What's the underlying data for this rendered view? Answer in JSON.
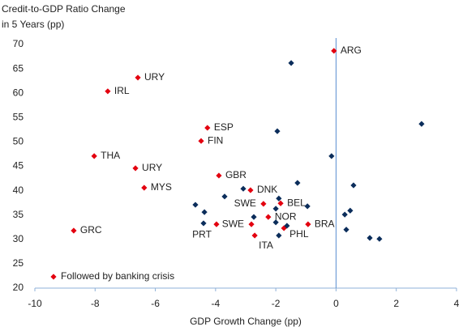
{
  "chart_data": {
    "type": "scatter",
    "y_label": [
      "Credit-to-GDP Ratio Change",
      "in 5 Years (pp)"
    ],
    "x_label": "GDP Growth Change (pp)",
    "xlim": [
      -10,
      4
    ],
    "xticks": [
      -10,
      -8,
      -6,
      -4,
      -2,
      0,
      2,
      4
    ],
    "ylim": [
      20,
      70
    ],
    "yticks": [
      20,
      25,
      30,
      35,
      40,
      45,
      50,
      55,
      60,
      65,
      70
    ],
    "legend": "lower left",
    "series": [
      {
        "name": "Followed by banking crisis",
        "color": "#e3000f",
        "labels": [
          "ARG",
          "URY",
          "IRL",
          "ESP",
          "FIN",
          "THA",
          "URY",
          "MYS",
          "GBR",
          "DNK",
          "SWE",
          "BEL",
          "NOR",
          "SWE",
          "PRT",
          "PHL",
          "BRA",
          "ITA",
          "GRC"
        ],
        "x": [
          -0.07,
          -6.58,
          -7.58,
          -4.27,
          -4.48,
          -8.03,
          -6.66,
          -6.37,
          -3.89,
          -2.84,
          -2.41,
          -1.84,
          -2.25,
          -2.81,
          -3.97,
          -1.73,
          -0.93,
          -2.7,
          -8.71
        ],
        "values": [
          68.7,
          63.2,
          60.4,
          52.9,
          50.2,
          47.1,
          44.6,
          40.6,
          43.1,
          40.1,
          37.3,
          37.4,
          34.6,
          33.1,
          33.1,
          32.3,
          33.1,
          30.8,
          31.8
        ]
      },
      {
        "color": "#0b2d5b",
        "x": [
          -1.49,
          2.84,
          -1.95,
          -0.15,
          -1.28,
          0.58,
          -3.08,
          -3.7,
          -4.67,
          -1.9,
          -0.95,
          -2.0,
          -4.37,
          -2.73,
          0.47,
          0.29,
          -4.4,
          -2.0,
          -1.63,
          0.34,
          1.12,
          1.44,
          -1.9
        ],
        "values": [
          66.2,
          53.7,
          52.2,
          47.1,
          41.6,
          41.1,
          40.4,
          38.8,
          37.1,
          38.4,
          36.8,
          36.3,
          35.6,
          34.6,
          35.9,
          35.1,
          33.3,
          33.5,
          32.8,
          32.0,
          30.3,
          30.1,
          30.8
        ]
      }
    ]
  }
}
